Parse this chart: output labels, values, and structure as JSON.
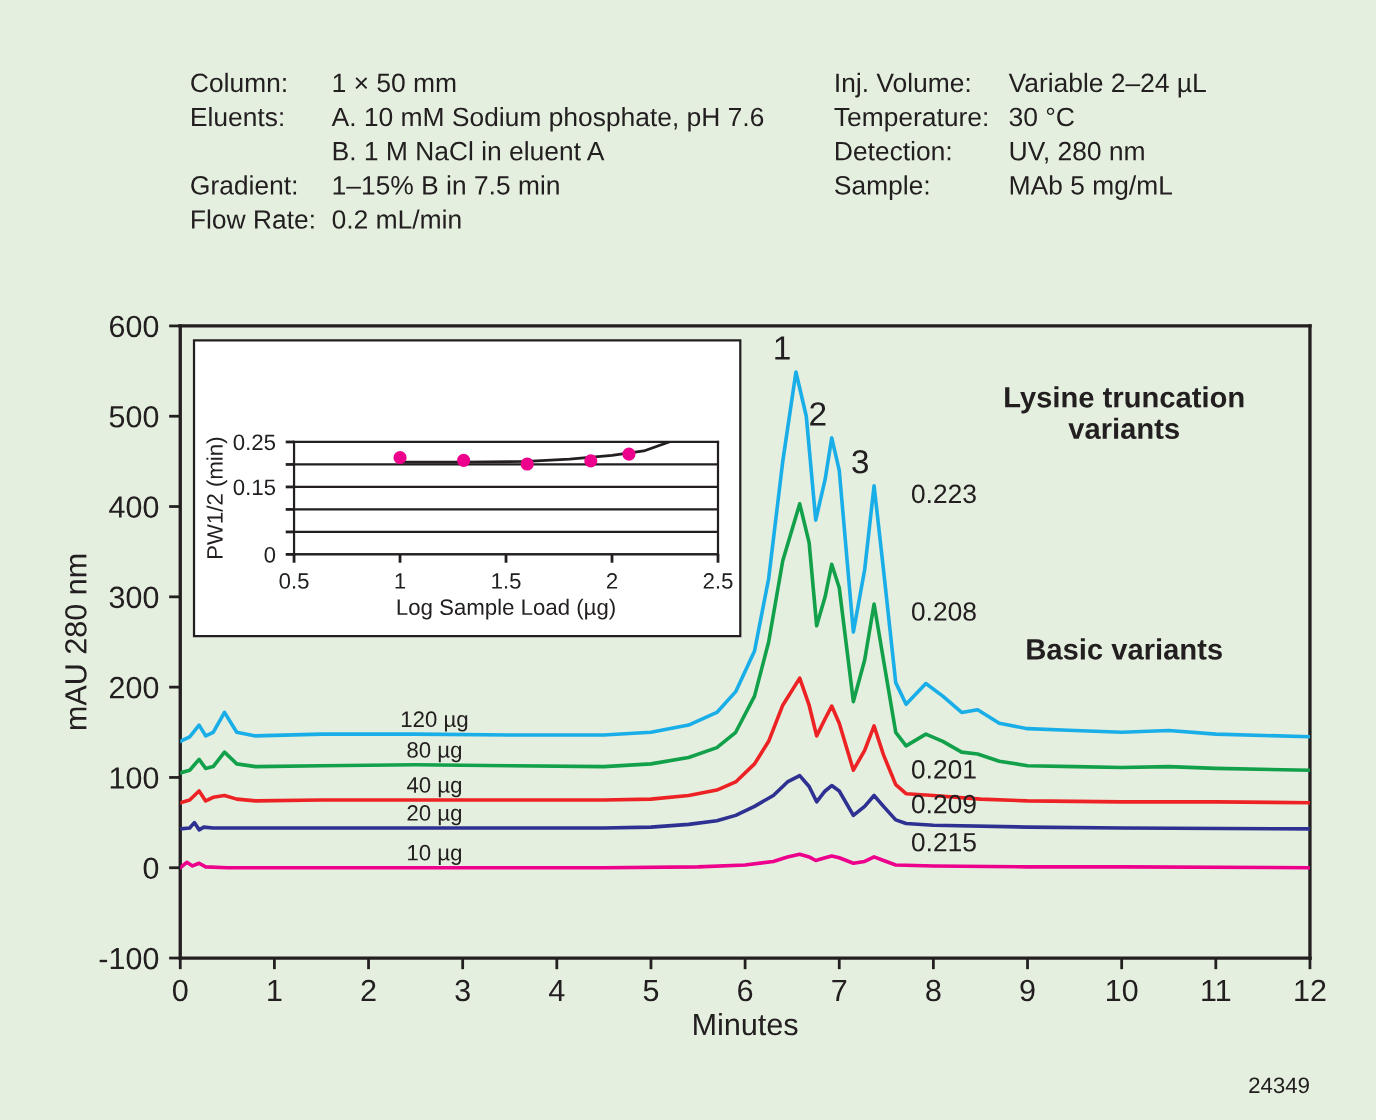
{
  "chart_data": [
    {
      "type": "line",
      "xlabel": "Minutes",
      "ylabel": "mAU 280 nm",
      "xlim": [
        0,
        12
      ],
      "xticks": [
        0,
        1,
        2,
        3,
        4,
        5,
        6,
        7,
        8,
        9,
        10,
        11,
        12
      ],
      "ylim": [
        -100,
        600
      ],
      "yticks": [
        -100,
        0,
        100,
        200,
        300,
        400,
        500,
        600
      ],
      "grid": false,
      "series": [
        {
          "name": "120 µg",
          "color": "#1aaee8",
          "x": [
            0,
            0.1,
            0.2,
            0.27,
            0.35,
            0.47,
            0.6,
            0.8,
            1.5,
            2.5,
            3.5,
            4.5,
            5.0,
            5.4,
            5.7,
            5.9,
            6.1,
            6.25,
            6.4,
            6.54,
            6.65,
            6.75,
            6.85,
            6.92,
            7.0,
            7.15,
            7.27,
            7.37,
            7.47,
            7.6,
            7.71,
            7.92,
            8.1,
            8.3,
            8.47,
            8.7,
            9.0,
            9.5,
            10.0,
            10.5,
            11.0,
            12
          ],
          "values": [
            140,
            145,
            158,
            146,
            150,
            172,
            150,
            146,
            148,
            148,
            147,
            147,
            150,
            158,
            172,
            195,
            240,
            320,
            450,
            549,
            500,
            385,
            430,
            476,
            440,
            261,
            330,
            423,
            330,
            205,
            181,
            204,
            190,
            172,
            175,
            160,
            154,
            152,
            150,
            152,
            148,
            145
          ]
        },
        {
          "name": "80 µg",
          "color": "#12a04a",
          "x": [
            0,
            0.1,
            0.2,
            0.27,
            0.35,
            0.47,
            0.6,
            0.8,
            1.5,
            2.5,
            3.5,
            4.5,
            5.0,
            5.4,
            5.7,
            5.9,
            6.1,
            6.25,
            6.4,
            6.58,
            6.68,
            6.76,
            6.85,
            6.92,
            7.0,
            7.15,
            7.27,
            7.37,
            7.47,
            7.6,
            7.71,
            7.92,
            8.1,
            8.3,
            8.47,
            8.7,
            9.0,
            9.5,
            10.0,
            10.5,
            11,
            12
          ],
          "values": [
            105,
            108,
            120,
            110,
            112,
            128,
            115,
            112,
            113,
            114,
            113,
            112,
            115,
            122,
            133,
            150,
            190,
            250,
            340,
            403,
            360,
            268,
            300,
            336,
            310,
            184,
            230,
            292,
            230,
            150,
            135,
            148,
            140,
            128,
            126,
            118,
            113,
            112,
            111,
            112,
            110,
            108
          ]
        },
        {
          "name": "40 µg",
          "color": "#ed2224",
          "x": [
            0,
            0.1,
            0.2,
            0.27,
            0.35,
            0.47,
            0.6,
            0.8,
            1.5,
            2.5,
            3.5,
            4.5,
            5.0,
            5.4,
            5.7,
            5.9,
            6.1,
            6.25,
            6.4,
            6.58,
            6.68,
            6.76,
            6.85,
            6.92,
            7.0,
            7.15,
            7.27,
            7.37,
            7.47,
            7.6,
            7.71,
            8.0,
            8.5,
            9.0,
            10,
            11,
            12
          ],
          "values": [
            72,
            75,
            85,
            74,
            78,
            80,
            76,
            74,
            75,
            75,
            75,
            75,
            76,
            80,
            86,
            95,
            115,
            140,
            180,
            210,
            180,
            146,
            165,
            179,
            160,
            108,
            130,
            157,
            125,
            92,
            82,
            80,
            76,
            74,
            73,
            73,
            72
          ]
        },
        {
          "name": "20 µg",
          "color": "#2e3192",
          "x": [
            0,
            0.1,
            0.15,
            0.2,
            0.25,
            0.35,
            0.6,
            1.5,
            3.0,
            4.5,
            5.0,
            5.4,
            5.7,
            5.9,
            6.1,
            6.3,
            6.45,
            6.58,
            6.68,
            6.76,
            6.85,
            6.92,
            7.0,
            7.15,
            7.27,
            7.37,
            7.47,
            7.6,
            7.71,
            8.0,
            9.0,
            10,
            12
          ],
          "values": [
            43,
            44,
            50,
            42,
            45,
            44,
            44,
            44,
            44,
            44,
            45,
            48,
            52,
            58,
            68,
            80,
            95,
            102,
            90,
            73,
            85,
            91,
            85,
            58,
            68,
            80,
            68,
            53,
            49,
            47,
            45,
            44,
            43
          ]
        },
        {
          "name": "10 µg",
          "color": "#ec008c",
          "x": [
            0,
            0.07,
            0.13,
            0.2,
            0.27,
            0.5,
            1.5,
            3,
            4.5,
            5.5,
            6.0,
            6.3,
            6.45,
            6.58,
            6.68,
            6.75,
            6.85,
            6.92,
            7.0,
            7.15,
            7.27,
            7.37,
            7.47,
            7.6,
            8.0,
            9,
            10,
            12
          ],
          "values": [
            0,
            6,
            2,
            5,
            1,
            0,
            0,
            0,
            0,
            1,
            3,
            7,
            12,
            15,
            12,
            8,
            11,
            13,
            11,
            5,
            7,
            12,
            8,
            3,
            2,
            1,
            1,
            0
          ]
        }
      ],
      "annotations": [
        "Column:\nEluents:\n\nGradient:\nFlow Rate:",
        "1 × 50 mm\nA. 10 mM Sodium phosphate, pH 7.6\nB. 1 M NaCl in eluent A\n1–15% B in 7.5 min\n0.2 mL/min",
        "Inj. Volume:\nTemperature:\nDetection:\nSample:",
        "Variable 2–24 µL\n30 °C\nUV, 280 nm\nMAb 5 mg/mL",
        "0.223",
        "0.208",
        "0.201",
        "0.209",
        "0.215",
        "Lysine truncation\nvariants",
        "Basic variants",
        "24349",
        {
          "text": "1",
          "x": 6.54,
          "y": 549
        },
        {
          "text": "2",
          "x": 6.92,
          "y": 476
        },
        {
          "text": "3",
          "x": 7.37,
          "y": 423
        }
      ]
    },
    {
      "type": "scatter",
      "xlabel": "Log Sample Load (µg)",
      "ylabel": "PW1/2 (min)",
      "xlim": [
        0.5,
        2.5
      ],
      "xticks": [
        0.5,
        1,
        1.5,
        2,
        2.5
      ],
      "ylim": [
        0,
        0.25
      ],
      "yticks": [
        0,
        {
          "value": 0.05,
          "label": null
        },
        {
          "value": 0.1,
          "label": null
        },
        0.15,
        {
          "value": 0.2,
          "label": null
        },
        0.25
      ],
      "grid": "y",
      "series": [
        {
          "type": "line",
          "color": "#231f20",
          "x": [
            1.0,
            1.3,
            1.6,
            1.8,
            2.0,
            2.15,
            2.27
          ],
          "values": [
            0.205,
            0.205,
            0.207,
            0.212,
            0.22,
            0.23,
            0.25
          ]
        },
        {
          "type": "scatter",
          "marker": "circle",
          "color": "#ec008c",
          "x": [
            1.0,
            1.3,
            1.6,
            1.9,
            2.08
          ],
          "values": [
            0.215,
            0.209,
            0.201,
            0.208,
            0.223
          ]
        }
      ]
    }
  ]
}
